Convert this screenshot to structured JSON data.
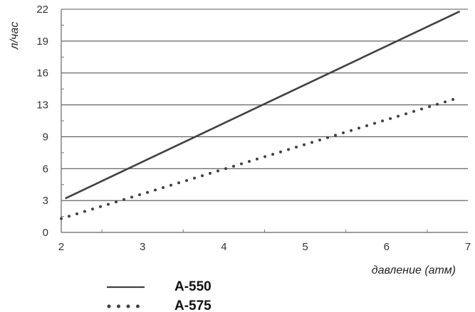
{
  "chart_data": {
    "type": "line",
    "title": "",
    "xlabel": "давление (атм)",
    "ylabel": "л/час",
    "xlim": [
      2,
      7
    ],
    "xticks": [
      "2",
      "3",
      "4",
      "5",
      "6",
      "7"
    ],
    "yticks": [
      "0",
      "3",
      "6",
      "9",
      "13",
      "16",
      "19",
      "22"
    ],
    "grid": "horizontal",
    "legend_position": "bottom-left",
    "series": [
      {
        "name": "А-550",
        "style": "solid",
        "color": "#404040",
        "x": [
          2.05,
          6.9
        ],
        "y": [
          3.2,
          21.8
        ]
      },
      {
        "name": "А-575",
        "style": "dotted",
        "color": "#404040",
        "x": [
          2.0,
          6.9
        ],
        "y": [
          1.3,
          13.7
        ]
      }
    ]
  }
}
